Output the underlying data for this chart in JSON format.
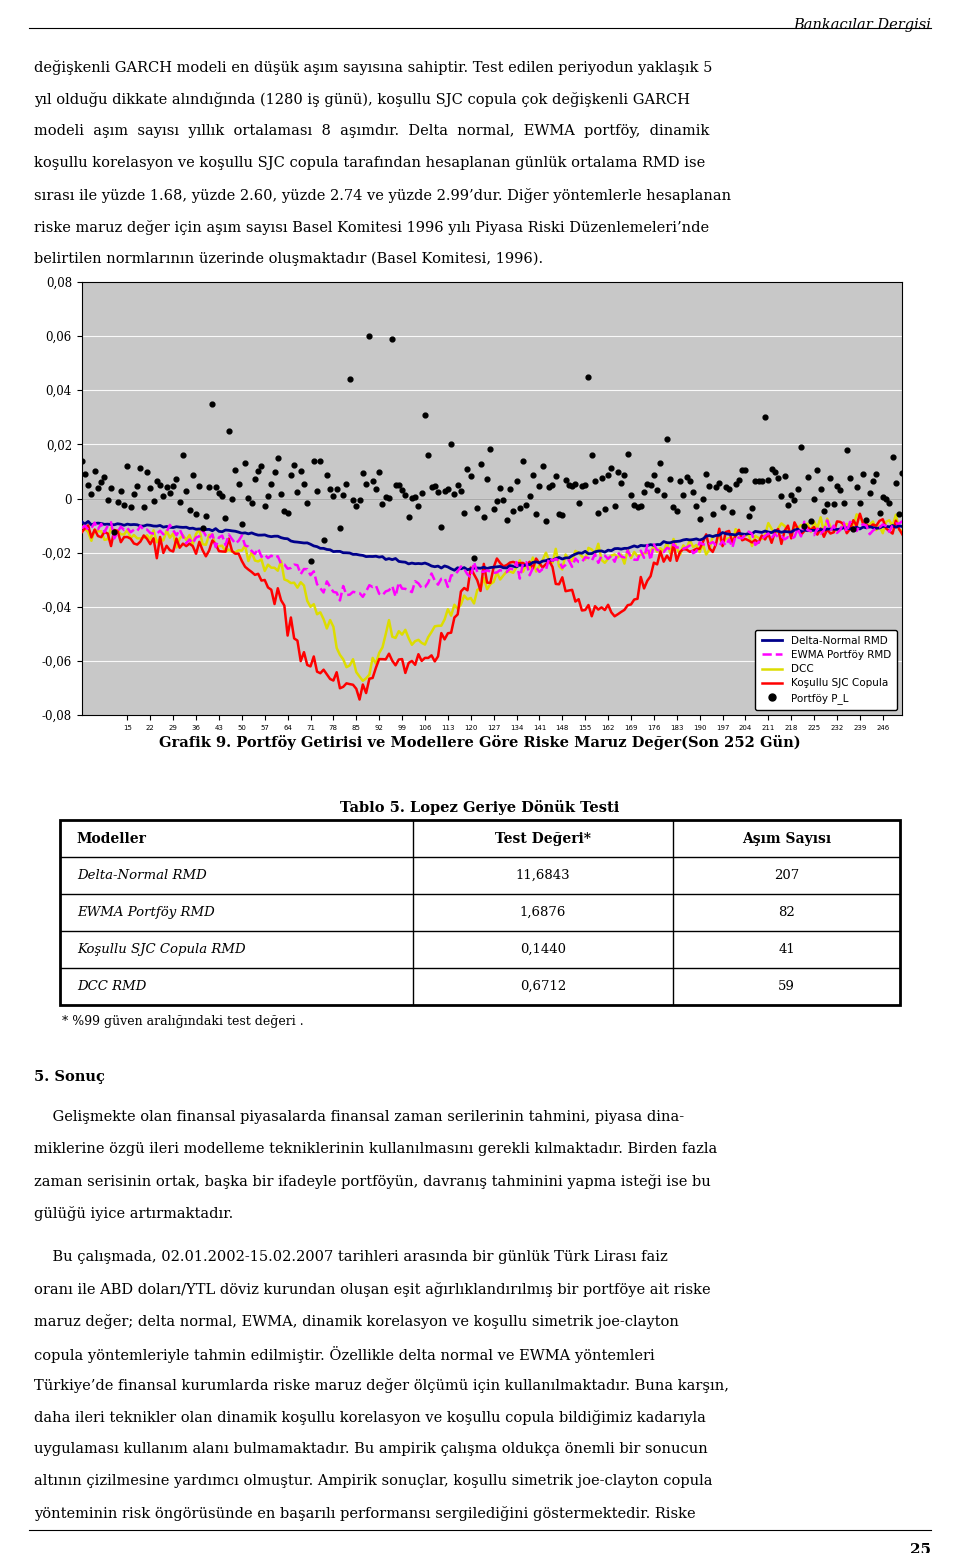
{
  "page_title": "Bankacılar Dergisi",
  "para1_lines": [
    "değişkenli GARCH modeli en düşük aşım sayısına sahiptir. Test edilen periyodun yaklaşık 5",
    "yıl olduğu dikkate alındığında (1280 iş günü), koşullu SJC copula çok değişkenli GARCH",
    "modeli  aşım  sayısı  yıllık  ortalaması  8  aşımdır.  Delta  normal,  EWMA  portföy,  dinamik",
    "koşullu korelasyon ve koşullu SJC copula tarafından hesaplanan günlük ortalama RMD ise",
    "sırası ile yüzde 1.68, yüzde 2.60, yüzde 2.74 ve yüzde 2.99’dur. Diğer yöntemlerle hesaplanan",
    "riske maruz değer için aşım sayısı Basel Komitesi 1996 yılı Piyasa Riski Düzenlemeleri’nde",
    "belirtilen normlarının üzerinde oluşmaktadır (Basel Komitesi, 1996)."
  ],
  "grafik_title": "Grafik 9. Portföy Getirisi ve Modellere Göre Riske Maruz Değer(Son 252 Gün)",
  "tablo_title": "Tablo 5. Lopez Geriye Dönük Testi",
  "table_headers": [
    "Modeller",
    "Test Değeri*",
    "Aşım Sayısı"
  ],
  "table_rows": [
    [
      "Delta-Normal RMD",
      "11,6843",
      "207"
    ],
    [
      "EWMA Portföy RMD",
      "1,6876",
      "82"
    ],
    [
      "Koşullu SJC Copula RMD",
      "0,1440",
      "41"
    ],
    [
      "DCC RMD",
      "0,6712",
      "59"
    ]
  ],
  "table_footnote": "* %99 güven aralığındaki test değeri .",
  "sonuc_title": "5. Sonuç",
  "para2_lines": [
    "    Gelişmekte olan finansal piyasalarda finansal zaman serilerinin tahmini, piyasa dina-",
    "miklerine özgü ileri modelleme tekniklerinin kullanılmasını gerekli kılmaktadır. Birden fazla",
    "zaman serisinin ortak, başka bir ifadeyle portföyün, davranış tahminini yapma isteği ise bu",
    "gülüğü iyice artırmaktadır."
  ],
  "para3_lines": [
    "    Bu çalışmada, 02.01.2002-15.02.2007 tarihleri arasında bir günlük Türk Lirası faiz",
    "oranı ile ABD doları/YTL döviz kurundan oluşan eşit ağırlıklandırılmış bir portföye ait riske",
    "maruz değer; delta normal, EWMA, dinamik korelasyon ve koşullu simetrik joe-clayton",
    "copula yöntemleriyle tahmin edilmiştir. Özellikle delta normal ve EWMA yöntemleri",
    "Türkiye’de finansal kurumlarda riske maruz değer ölçümü için kullanılmaktadır. Buna karşın,",
    "daha ileri teknikler olan dinamik koşullu korelasyon ve koşullu copula bildiğimiz kadarıyla",
    "uygulaması kullanım alanı bulmamaktadır. Bu ampirik çalışma oldukça önemli bir sonucun",
    "altının çizilmesine yardımcı olmuştur. Ampirik sonuçlar, koşullu simetrik joe-clayton copula",
    "yönteminin risk öngörüsünde en başarılı performansı sergilediğini göstermektedir. Riske"
  ],
  "page_number": "25",
  "chart_bg_color": "#C8C8C8",
  "chart_ylim": [
    -0.08,
    0.08
  ],
  "chart_yticks": [
    -0.08,
    -0.06,
    -0.04,
    -0.02,
    0,
    0.02,
    0.04,
    0.06,
    0.08
  ]
}
